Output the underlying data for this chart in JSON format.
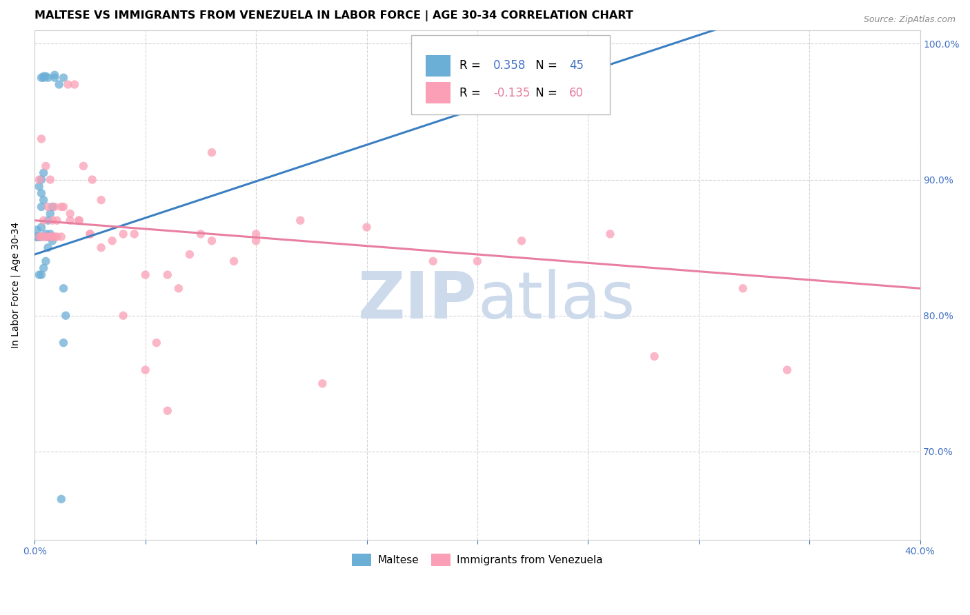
{
  "title": "MALTESE VS IMMIGRANTS FROM VENEZUELA IN LABOR FORCE | AGE 30-34 CORRELATION CHART",
  "source": "Source: ZipAtlas.com",
  "ylabel": "In Labor Force | Age 30-34",
  "blue_scatter": {
    "x": [
      0.001,
      0.004,
      0.005,
      0.004,
      0.009,
      0.009,
      0.011,
      0.013,
      0.006,
      0.003,
      0.003,
      0.004,
      0.003,
      0.002,
      0.003,
      0.004,
      0.005,
      0.006,
      0.007,
      0.005,
      0.003,
      0.006,
      0.007,
      0.008,
      0.007,
      0.008,
      0.006,
      0.005,
      0.004,
      0.003,
      0.002,
      0.003,
      0.002,
      0.001,
      0.002,
      0.001,
      0.001,
      0.001,
      0.001,
      0.001,
      0.002,
      0.013,
      0.014,
      0.013,
      0.012
    ],
    "y": [
      0.863,
      0.975,
      0.976,
      0.976,
      0.975,
      0.977,
      0.97,
      0.975,
      0.975,
      0.975,
      0.88,
      0.885,
      0.89,
      0.895,
      0.9,
      0.905,
      0.858,
      0.858,
      0.858,
      0.86,
      0.865,
      0.87,
      0.875,
      0.88,
      0.86,
      0.855,
      0.85,
      0.84,
      0.835,
      0.83,
      0.858,
      0.858,
      0.858,
      0.858,
      0.858,
      0.858,
      0.858,
      0.858,
      0.858,
      0.858,
      0.83,
      0.82,
      0.8,
      0.78,
      0.665
    ]
  },
  "pink_scatter": {
    "x": [
      0.002,
      0.003,
      0.004,
      0.005,
      0.006,
      0.007,
      0.008,
      0.009,
      0.01,
      0.012,
      0.015,
      0.018,
      0.022,
      0.026,
      0.03,
      0.035,
      0.04,
      0.045,
      0.05,
      0.055,
      0.06,
      0.065,
      0.07,
      0.075,
      0.08,
      0.09,
      0.1,
      0.12,
      0.15,
      0.18,
      0.22,
      0.28,
      0.34,
      0.002,
      0.004,
      0.006,
      0.008,
      0.01,
      0.013,
      0.016,
      0.02,
      0.025,
      0.03,
      0.04,
      0.05,
      0.06,
      0.08,
      0.1,
      0.13,
      0.2,
      0.26,
      0.32,
      0.003,
      0.005,
      0.007,
      0.009,
      0.012,
      0.016,
      0.02,
      0.025
    ],
    "y": [
      0.858,
      0.858,
      0.858,
      0.858,
      0.858,
      0.858,
      0.858,
      0.858,
      0.858,
      0.858,
      0.97,
      0.97,
      0.91,
      0.9,
      0.885,
      0.855,
      0.86,
      0.86,
      0.83,
      0.78,
      0.73,
      0.82,
      0.845,
      0.86,
      0.92,
      0.84,
      0.86,
      0.87,
      0.865,
      0.84,
      0.855,
      0.77,
      0.76,
      0.9,
      0.87,
      0.88,
      0.87,
      0.87,
      0.88,
      0.87,
      0.87,
      0.86,
      0.85,
      0.8,
      0.76,
      0.83,
      0.855,
      0.855,
      0.75,
      0.84,
      0.86,
      0.82,
      0.93,
      0.91,
      0.9,
      0.88,
      0.88,
      0.875,
      0.87,
      0.86
    ]
  },
  "blue_line": {
    "x": [
      0.0,
      0.4
    ],
    "y": [
      0.845,
      1.06
    ]
  },
  "pink_line": {
    "x": [
      0.0,
      0.4
    ],
    "y": [
      0.87,
      0.82
    ]
  },
  "xmin": 0.0,
  "xmax": 0.4,
  "ymin": 0.635,
  "ymax": 1.01,
  "blue_color": "#6baed6",
  "pink_color": "#fa9fb5",
  "blue_line_color": "#3a7fc1",
  "pink_line_color": "#e87fa0",
  "watermark_zip": "ZIP",
  "watermark_atlas": "atlas",
  "watermark_color": "#ccdaec",
  "grid_color": "#d0d0d0",
  "title_fontsize": 11.5,
  "axis_label_fontsize": 10,
  "tick_color": "#4472c4",
  "tick_fontsize": 10,
  "source_fontsize": 9,
  "legend_r_blue": "0.358",
  "legend_n_blue": "45",
  "legend_r_pink": "-0.135",
  "legend_n_pink": "60"
}
